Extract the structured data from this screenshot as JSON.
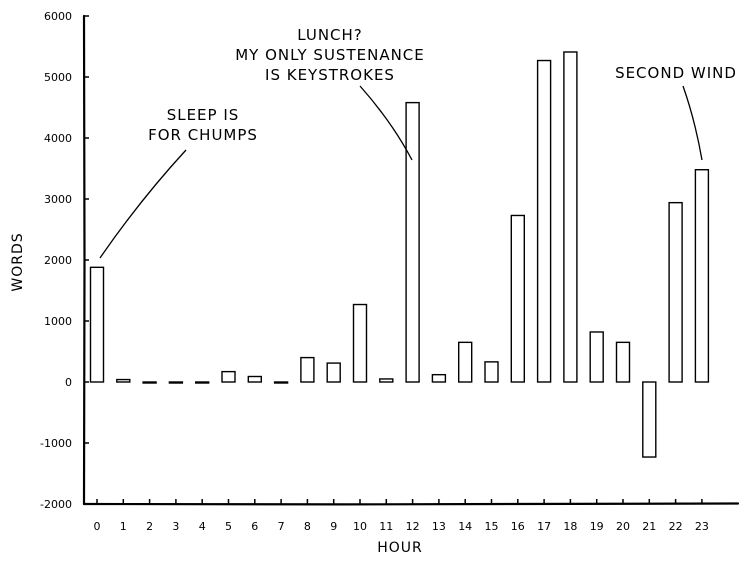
{
  "chart_data": {
    "type": "bar",
    "xlabel": "HOUR",
    "ylabel": "WORDS",
    "ylim": [
      -2000,
      6000
    ],
    "yticks": [
      -2000,
      -1000,
      0,
      1000,
      2000,
      3000,
      4000,
      5000,
      6000
    ],
    "ytick_labels": [
      "-2000",
      "-1000",
      "0",
      "1000",
      "2000",
      "3000",
      "4000",
      "5000",
      "6000"
    ],
    "categories": [
      "0",
      "1",
      "2",
      "3",
      "4",
      "5",
      "6",
      "7",
      "8",
      "9",
      "10",
      "11",
      "12",
      "13",
      "14",
      "15",
      "16",
      "17",
      "18",
      "19",
      "20",
      "21",
      "22",
      "23"
    ],
    "values": [
      1880,
      40,
      0,
      0,
      0,
      170,
      90,
      0,
      400,
      310,
      1270,
      50,
      4580,
      120,
      650,
      330,
      2730,
      5270,
      5410,
      820,
      650,
      -1230,
      2940,
      3480
    ],
    "grid": false,
    "annotations": [
      {
        "lines": [
          "SLEEP IS",
          "FOR CHUMPS"
        ],
        "points_to": "0"
      },
      {
        "lines": [
          "LUNCH?",
          "MY ONLY SUSTENANCE",
          "IS KEYSTROKES"
        ],
        "points_to": "12"
      },
      {
        "lines": [
          "SECOND WIND"
        ],
        "points_to": "23"
      }
    ]
  }
}
